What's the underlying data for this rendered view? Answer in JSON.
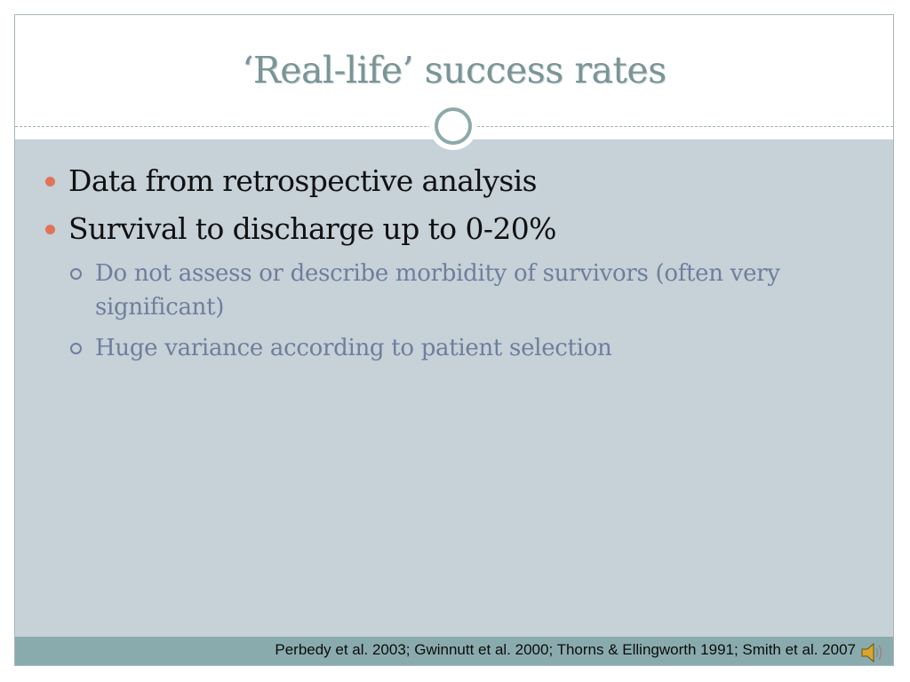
{
  "slide": {
    "title": "‘Real-life’ success rates",
    "bullets": [
      {
        "text": "Data from retrospective analysis"
      },
      {
        "text": "Survival to discharge up to 0-20%"
      }
    ],
    "sub_bullets": [
      {
        "text": "Do not assess or describe morbidity of survivors (often very significant)"
      },
      {
        "text": "Huge variance according to patient selection"
      }
    ],
    "footer_citation": "Perbedy et al. 2003; Gwinnutt et al. 2000; Thorns & Ellingworth 1991; Smith et al. 2007",
    "icons": {
      "audio": "speaker-icon",
      "ornament": "circle-ornament"
    },
    "colors": {
      "title": "#7b9597",
      "content_background": "#c6d1d8",
      "bullet": "#e0745b",
      "sub_text": "#6e7f9c",
      "footer_band": "#8aabae"
    }
  }
}
